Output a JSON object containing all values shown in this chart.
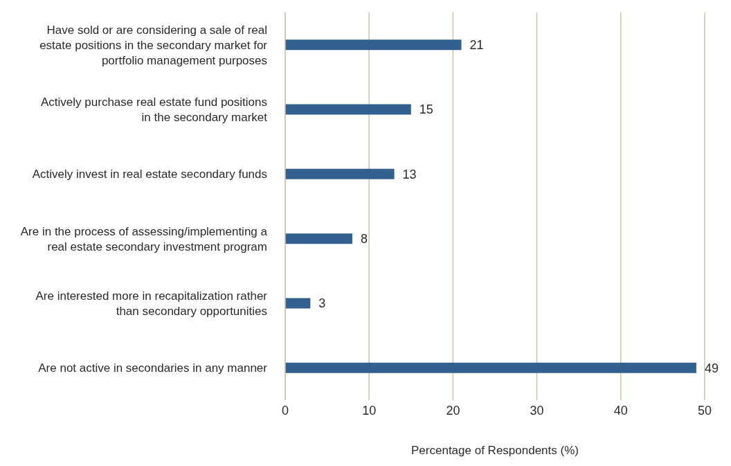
{
  "chart_data": {
    "type": "bar",
    "orientation": "horizontal",
    "xlabel": "Percentage of Respondents (%)",
    "categories": [
      "Have sold or are considering a sale of real estate positions in the secondary market for portfolio management purposes",
      "Actively purchase real estate fund positions in the secondary market",
      "Actively invest in real estate secondary funds",
      "Are in the process of assessing/implementing a real estate secondary investment program",
      "Are interested more in recapitalization rather than secondary opportunities",
      "Are not active in secondaries in any manner"
    ],
    "values": [
      21,
      15,
      13,
      8,
      3,
      49
    ],
    "color": "#33618f",
    "xlim": [
      0,
      50
    ],
    "xticks": [
      0,
      10,
      20,
      30,
      40,
      50
    ],
    "grid": "x",
    "data_labels": true
  }
}
